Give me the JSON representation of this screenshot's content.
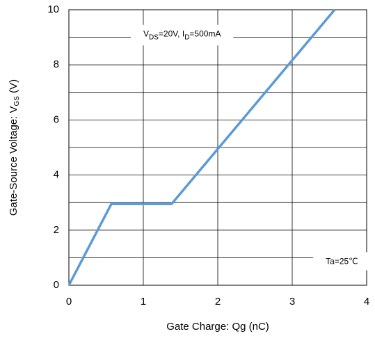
{
  "chart_data": {
    "type": "line",
    "x_label": [
      {
        "text": "Gate Charge: Qg (nC)",
        "sub": false
      }
    ],
    "y_label": [
      {
        "text": "Gate-Source Voltage: V",
        "sub": false
      },
      {
        "text": "GS",
        "sub": true
      },
      {
        "text": " (V)",
        "sub": false
      }
    ],
    "x": [
      0,
      0.57,
      1.38,
      3.57
    ],
    "series": [
      {
        "color": "#5b9bd5",
        "values": [
          0,
          2.95,
          2.95,
          10
        ]
      }
    ],
    "xlim": [
      0,
      4
    ],
    "xticks": [
      0,
      1,
      2,
      3,
      4
    ],
    "ylim": [
      0,
      10
    ],
    "yticks": [
      0,
      2,
      4,
      6,
      8,
      10
    ],
    "grid": true,
    "annotations": [
      {
        "x": 1.0,
        "y": 9.1,
        "runs": [
          {
            "text": "V",
            "sub": false
          },
          {
            "text": "DS",
            "sub": true
          },
          {
            "text": "=20V, I",
            "sub": false
          },
          {
            "text": "D",
            "sub": true
          },
          {
            "text": "=500mA",
            "sub": false
          }
        ]
      },
      {
        "x": 3.45,
        "y": 0.85,
        "runs": [
          {
            "text": "Ta=25℃",
            "sub": false
          }
        ]
      }
    ]
  }
}
